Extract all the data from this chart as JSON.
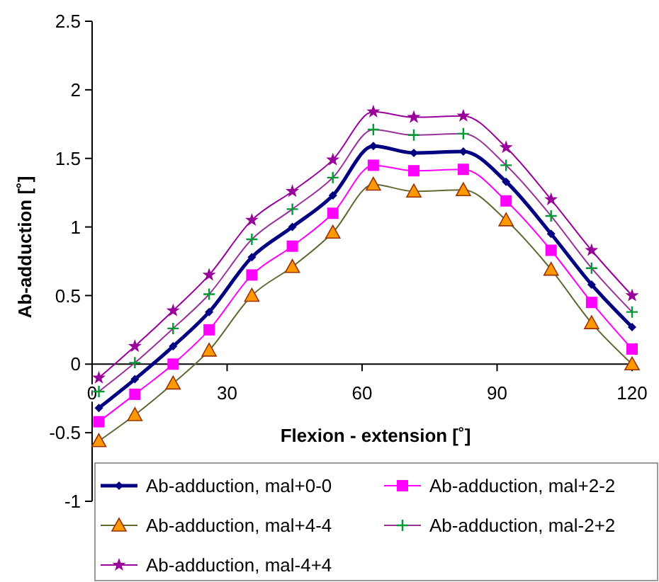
{
  "chart_data": {
    "type": "line",
    "xlabel": "Flexion - extension [˚]",
    "ylabel": "Ab-adduction [˚]",
    "x": [
      1.5,
      9.5,
      18,
      26,
      35.5,
      44.5,
      53.5,
      62.5,
      71.5,
      82.5,
      92,
      102,
      111,
      120
    ],
    "xlim": [
      0,
      120
    ],
    "xticks": [
      0,
      30,
      60,
      90,
      120
    ],
    "ylim": [
      -1,
      2.5
    ],
    "yticks": [
      -1,
      -0.5,
      0,
      0.5,
      1,
      1.5,
      2,
      2.5
    ],
    "grid": false,
    "legend": "bottom",
    "series": [
      {
        "name": "Ab-adduction, mal+0-0",
        "color": "#000080",
        "marker": "diamond",
        "values": [
          -0.32,
          -0.11,
          0.13,
          0.38,
          0.78,
          1.0,
          1.23,
          1.59,
          1.54,
          1.55,
          1.33,
          0.95,
          0.58,
          0.27
        ]
      },
      {
        "name": "Ab-adduction, mal+2-2",
        "color": "#ff00ff",
        "marker": "square",
        "values": [
          -0.42,
          -0.22,
          0.0,
          0.25,
          0.65,
          0.86,
          1.1,
          1.45,
          1.41,
          1.42,
          1.19,
          0.83,
          0.45,
          0.11
        ]
      },
      {
        "name": "Ab-adduction, mal+4-4",
        "color": "#ff9900",
        "marker": "triangle",
        "values": [
          -0.56,
          -0.37,
          -0.14,
          0.1,
          0.5,
          0.71,
          0.96,
          1.31,
          1.26,
          1.27,
          1.05,
          0.69,
          0.3,
          0.0
        ]
      },
      {
        "name": "Ab-adduction, mal-2+2",
        "color": "#009933",
        "marker": "cross",
        "values": [
          -0.2,
          0.01,
          0.26,
          0.51,
          0.91,
          1.13,
          1.36,
          1.71,
          1.67,
          1.68,
          1.45,
          1.08,
          0.7,
          0.38
        ]
      },
      {
        "name": "Ab-adduction, mal-4+4",
        "color": "#990099",
        "marker": "star",
        "values": [
          -0.1,
          0.13,
          0.39,
          0.65,
          1.05,
          1.26,
          1.49,
          1.84,
          1.8,
          1.81,
          1.58,
          1.2,
          0.83,
          0.5
        ]
      }
    ]
  }
}
